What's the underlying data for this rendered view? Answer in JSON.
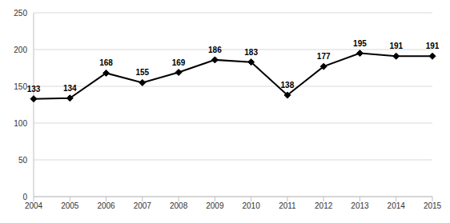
{
  "chart_data": {
    "type": "line",
    "categories": [
      "2004",
      "2005",
      "2006",
      "2007",
      "2008",
      "2009",
      "2010",
      "2011",
      "2012",
      "2013",
      "2014",
      "2015"
    ],
    "values": [
      133,
      134,
      168,
      155,
      169,
      186,
      183,
      138,
      177,
      195,
      191,
      191
    ],
    "color": "#000000",
    "marker": "diamond",
    "line_style": "solid",
    "ylim": [
      0,
      250
    ],
    "yticks": [
      0,
      50,
      100,
      150,
      200,
      250
    ],
    "grid": true,
    "data_labels": true
  }
}
